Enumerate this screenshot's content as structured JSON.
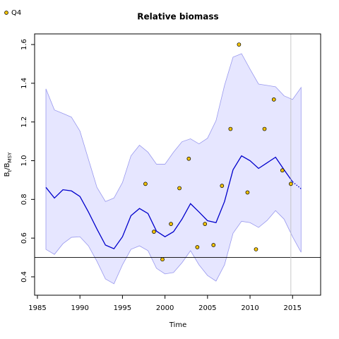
{
  "chart_data": {
    "type": "line",
    "title": "Relative biomass",
    "x_label": "Time",
    "y_label_parts": [
      "B",
      "t",
      "/B",
      "MSY"
    ],
    "x": [
      1986,
      1987,
      1988,
      1989,
      1990,
      1991,
      1992,
      1993,
      1994,
      1995,
      1996,
      1997,
      1998,
      1999,
      2000,
      2001,
      2002,
      2003,
      2004,
      2005,
      2006,
      2007,
      2008,
      2009,
      2010,
      2011,
      2012,
      2013,
      2014,
      2015,
      2016
    ],
    "median": {
      "color": "#0000cc",
      "values": [
        0.862,
        0.807,
        0.85,
        0.844,
        0.815,
        0.735,
        0.647,
        0.564,
        0.545,
        0.607,
        0.716,
        0.753,
        0.727,
        0.636,
        0.607,
        0.633,
        0.698,
        0.778,
        0.735,
        0.69,
        0.68,
        0.789,
        0.953,
        1.025,
        1.0,
        0.96,
        0.989,
        1.018,
        0.953,
        0.891,
        null
      ]
    },
    "projection": {
      "color": "#0000cc",
      "values": [
        null,
        null,
        null,
        null,
        null,
        null,
        null,
        null,
        null,
        null,
        null,
        null,
        null,
        null,
        null,
        null,
        null,
        null,
        null,
        null,
        null,
        null,
        null,
        null,
        null,
        null,
        null,
        null,
        null,
        0.891,
        0.855
      ]
    },
    "band": {
      "color": "#e6e6ff",
      "edge": "#9999ee",
      "upper": [
        1.371,
        1.262,
        1.244,
        1.225,
        1.153,
        1.007,
        0.862,
        0.789,
        0.807,
        0.887,
        1.025,
        1.08,
        1.044,
        0.982,
        0.982,
        1.044,
        1.098,
        1.113,
        1.087,
        1.116,
        1.207,
        1.389,
        1.535,
        1.553,
        1.473,
        1.396,
        1.389,
        1.382,
        1.335,
        1.316,
        1.378
      ],
      "lower": [
        0.542,
        0.516,
        0.571,
        0.604,
        0.607,
        0.56,
        0.48,
        0.389,
        0.364,
        0.462,
        0.542,
        0.56,
        0.535,
        0.444,
        0.415,
        0.422,
        0.473,
        0.535,
        0.462,
        0.407,
        0.378,
        0.462,
        0.625,
        0.687,
        0.68,
        0.655,
        0.691,
        0.742,
        0.698,
        0.607,
        0.527
      ]
    },
    "points": {
      "name": "Q4",
      "color": "#f2c200",
      "x": [
        1997.7,
        1998.7,
        1999.7,
        2000.7,
        2001.7,
        2002.8,
        2003.8,
        2004.7,
        2005.7,
        2006.7,
        2007.7,
        2008.7,
        2009.7,
        2010.7,
        2011.7,
        2012.8,
        2013.8,
        2014.8
      ],
      "values": [
        0.88,
        0.633,
        0.49,
        0.673,
        0.858,
        1.01,
        0.553,
        0.673,
        0.564,
        0.87,
        1.164,
        1.6,
        0.836,
        0.542,
        1.164,
        1.316,
        0.95,
        0.88
      ]
    },
    "hline": 0.5,
    "vline": 2014.8,
    "xlim": [
      1984.67,
      2018.3
    ],
    "ylim": [
      0.305,
      1.655
    ],
    "xticks": [
      1985,
      1990,
      1995,
      2000,
      2005,
      2010,
      2015
    ],
    "yticks": [
      0.4,
      0.6,
      0.8,
      1.0,
      1.2,
      1.4,
      1.6
    ],
    "legend": "top-left"
  }
}
